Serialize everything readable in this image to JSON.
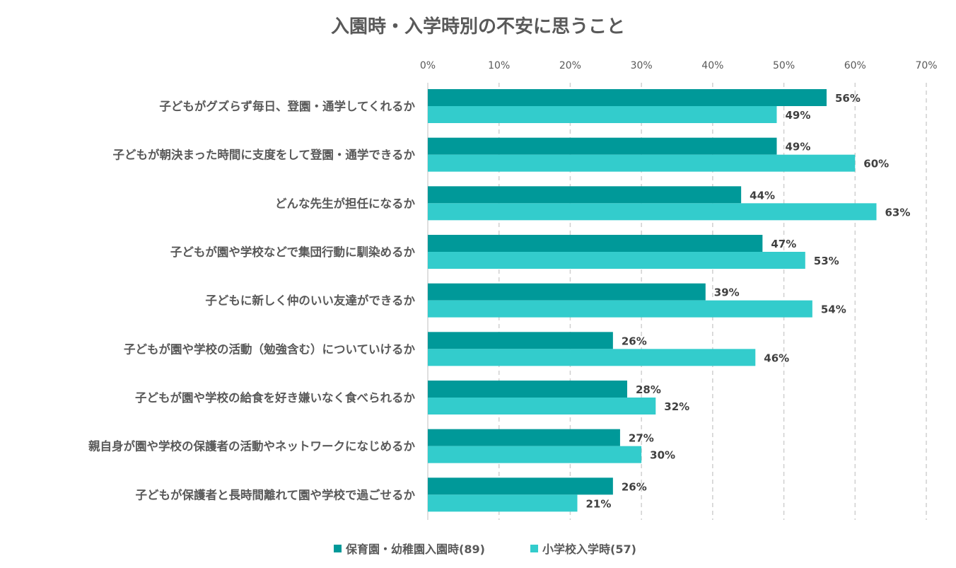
{
  "chart_data": {
    "type": "bar",
    "orientation": "horizontal",
    "title": "入園時・入学時別の不安に思うこと",
    "categories": [
      "子どもがグズらず毎日、登園・通学してくれるか",
      "子どもが朝決まった時間に支度をして登園・通学できるか",
      "どんな先生が担任になるか",
      "子どもが園や学校などで集団行動に馴染めるか",
      "子どもに新しく仲のいい友達ができるか",
      "子どもが園や学校の活動（勉強含む）についていけるか",
      "子どもが園や学校の給食を好き嫌いなく食べられるか",
      "親自身が園や学校の保護者の活動やネットワークになじめるか",
      "子どもが保護者と長時間離れて園や学校で過ごせるか"
    ],
    "series": [
      {
        "name": "保育園・幼稚園入園時(89)",
        "color": "#009999",
        "values": [
          56,
          49,
          44,
          47,
          39,
          26,
          28,
          27,
          26
        ]
      },
      {
        "name": "小学校入学時(57)",
        "color": "#33CCCC",
        "values": [
          49,
          60,
          63,
          53,
          54,
          46,
          32,
          30,
          21
        ]
      }
    ],
    "xlim": [
      0,
      70
    ],
    "xticks": [
      "0%",
      "10%",
      "20%",
      "30%",
      "40%",
      "50%",
      "60%",
      "70%"
    ],
    "value_suffix": "%",
    "grid": "vertical dashed",
    "legend_position": "bottom"
  }
}
